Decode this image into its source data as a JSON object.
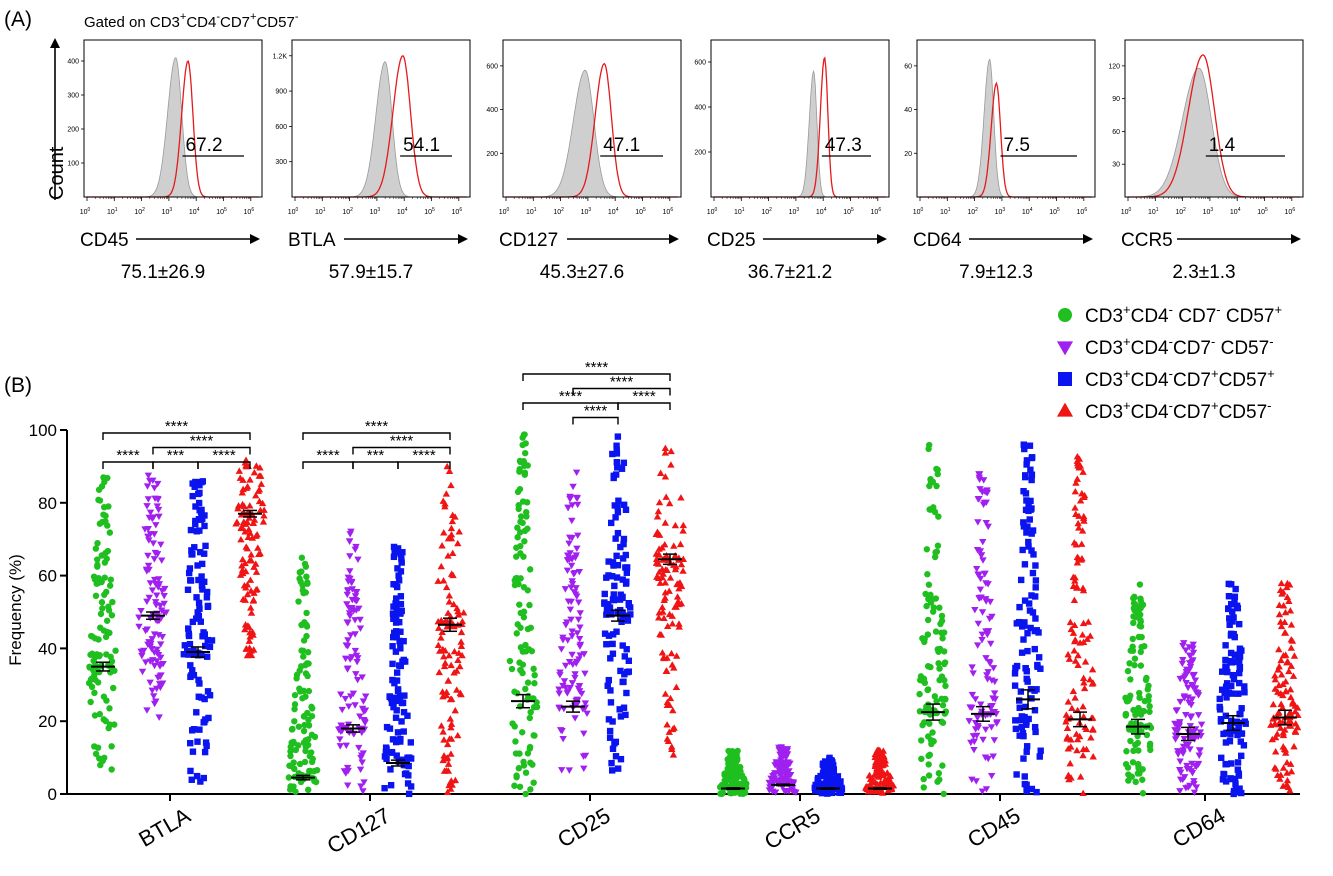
{
  "panel_a": {
    "label": "(A)",
    "gating": {
      "prefix": "Gated on CD3",
      "s1": "+",
      "m1": "CD4",
      "s2": "-",
      "m2": "CD7",
      "s3": "+",
      "m3": "CD57",
      "s4": "-"
    },
    "y_axis_label": "Count",
    "colors": {
      "control": "#cfcfcf",
      "control_edge": "#999999",
      "sample": "#e41a1c"
    },
    "x_ticks": [
      "10",
      "10",
      "10",
      "10",
      "10",
      "10",
      "10"
    ],
    "x_tick_exps": [
      "0",
      "1",
      "2",
      "3",
      "4",
      "5",
      "6"
    ],
    "histograms": [
      {
        "marker": "CD45",
        "gate_value": "67.2",
        "summary": "75.1±26.9",
        "y_ticks": [
          "100",
          "200",
          "300",
          "400"
        ],
        "y_max": 450,
        "ctrl_peak_log": 3.25,
        "ctrl_sd": 0.22,
        "ctrl_height": 410,
        "sample_peak_log": 3.7,
        "sample_sd": 0.18,
        "sample_height": 400,
        "gate_start_log": 3.5
      },
      {
        "marker": "BTLA",
        "gate_value": "54.1",
        "summary": "57.9±15.7",
        "y_ticks": [
          "300",
          "600",
          "900",
          "1.2K"
        ],
        "y_max": 1300,
        "ctrl_peak_log": 3.3,
        "ctrl_sd": 0.25,
        "ctrl_height": 1150,
        "sample_peak_log": 3.95,
        "sample_sd": 0.28,
        "sample_height": 1200,
        "gate_start_log": 3.85
      },
      {
        "marker": "CD127",
        "gate_value": "47.1",
        "summary": "45.3±27.6",
        "y_ticks": [
          "200",
          "400",
          "600"
        ],
        "y_max": 700,
        "ctrl_peak_log": 2.9,
        "ctrl_sd": 0.32,
        "ctrl_height": 580,
        "sample_peak_log": 3.6,
        "sample_sd": 0.26,
        "sample_height": 610,
        "gate_start_log": 3.45
      },
      {
        "marker": "CD25",
        "gate_value": "47.3",
        "summary": "36.7±21.2",
        "y_ticks": [
          "200",
          "400",
          "600"
        ],
        "y_max": 680,
        "ctrl_peak_log": 3.65,
        "ctrl_sd": 0.12,
        "ctrl_height": 560,
        "sample_peak_log": 4.05,
        "sample_sd": 0.12,
        "sample_height": 620,
        "gate_start_log": 3.95
      },
      {
        "marker": "CD64",
        "gate_value": "7.5",
        "summary": "7.9±12.3",
        "y_ticks": [
          "20",
          "40",
          "60"
        ],
        "y_max": 70,
        "ctrl_peak_log": 2.55,
        "ctrl_sd": 0.15,
        "ctrl_height": 63,
        "sample_peak_log": 2.8,
        "sample_sd": 0.15,
        "sample_height": 52,
        "gate_start_log": 2.95
      },
      {
        "marker": "CCR5",
        "gate_value": "1.4",
        "summary": "2.3±1.3",
        "y_ticks": [
          "30",
          "60",
          "90",
          "120"
        ],
        "y_max": 140,
        "ctrl_peak_log": 2.6,
        "ctrl_sd": 0.45,
        "ctrl_height": 118,
        "sample_peak_log": 2.75,
        "sample_sd": 0.42,
        "sample_height": 130,
        "gate_start_log": 2.85
      }
    ]
  },
  "chart_data": {
    "type": "scatter",
    "panel_label": "(B)",
    "ylabel": "Frequency (%)",
    "ylim": [
      0,
      100
    ],
    "y_ticks": [
      "0",
      "20",
      "40",
      "60",
      "80",
      "100"
    ],
    "categories": [
      "BTLA",
      "CD127",
      "CD25",
      "CCR5",
      "CD45",
      "CD64"
    ],
    "legend": {
      "placement": "top-right",
      "items": [
        {
          "segments": [
            [
              "CD3",
              ""
            ],
            [
              "+",
              "sup"
            ],
            [
              "CD4",
              ""
            ],
            [
              "-",
              "sup"
            ],
            [
              " CD7",
              ""
            ],
            [
              "-",
              "sup"
            ],
            [
              " CD57",
              ""
            ],
            [
              "+",
              "sup"
            ]
          ],
          "color": "#1fbf1f",
          "marker": "circle"
        },
        {
          "segments": [
            [
              "CD3",
              ""
            ],
            [
              "+",
              "sup"
            ],
            [
              "CD4",
              ""
            ],
            [
              "-",
              "sup"
            ],
            [
              "CD7",
              ""
            ],
            [
              "-",
              "sup"
            ],
            [
              " CD57",
              ""
            ],
            [
              "-",
              "sup"
            ]
          ],
          "color": "#a020f0",
          "marker": "triangle-down"
        },
        {
          "segments": [
            [
              "CD3",
              ""
            ],
            [
              "+",
              "sup"
            ],
            [
              "CD4",
              ""
            ],
            [
              "-",
              "sup"
            ],
            [
              "CD7",
              ""
            ],
            [
              "+",
              "sup"
            ],
            [
              "CD57",
              ""
            ],
            [
              "+",
              "sup"
            ]
          ],
          "color": "#0a14f0",
          "marker": "square"
        },
        {
          "segments": [
            [
              "CD3",
              ""
            ],
            [
              "+",
              "sup"
            ],
            [
              "CD4",
              ""
            ],
            [
              "-",
              "sup"
            ],
            [
              "CD7",
              ""
            ],
            [
              "+",
              "sup"
            ],
            [
              "CD57",
              ""
            ],
            [
              "-",
              "sup"
            ]
          ],
          "color": "#f01414",
          "marker": "triangle-up"
        }
      ]
    },
    "series_colors": [
      "#1fbf1f",
      "#a020f0",
      "#0a14f0",
      "#f01414"
    ],
    "series_markers": [
      "circle",
      "triangle-down",
      "square",
      "triangle-up"
    ],
    "means": {
      "BTLA": [
        35,
        49,
        39,
        77
      ],
      "CD127": [
        4.5,
        18,
        8.5,
        46.5
      ],
      "CD25": [
        25.5,
        24,
        49,
        64.5
      ],
      "CCR5": [
        1.5,
        2.5,
        1.5,
        1.5
      ],
      "CD45": [
        22.5,
        22,
        26,
        20.5
      ],
      "CD64": [
        18.5,
        16.5,
        19.5,
        21
      ]
    },
    "sem": {
      "BTLA": [
        1.2,
        1.0,
        1.4,
        0.9
      ],
      "CD127": [
        0.6,
        1.0,
        0.8,
        1.8
      ],
      "CD25": [
        1.8,
        1.5,
        1.5,
        1.4
      ],
      "CCR5": [
        0.2,
        0.2,
        0.2,
        0.2
      ],
      "CD45": [
        2.2,
        2.0,
        2.6,
        2.0
      ],
      "CD64": [
        2.0,
        1.8,
        2.0,
        2.0
      ]
    },
    "ranges": {
      "BTLA": [
        [
          1,
          87
        ],
        [
          21,
          88
        ],
        [
          3,
          86
        ],
        [
          38,
          93
        ]
      ],
      "CD127": [
        [
          0,
          66
        ],
        [
          0,
          73
        ],
        [
          0,
          68
        ],
        [
          0,
          90
        ]
      ],
      "CD25": [
        [
          0,
          100
        ],
        [
          1,
          93
        ],
        [
          6,
          99
        ],
        [
          10,
          97
        ]
      ],
      "CCR5": [
        [
          0,
          12
        ],
        [
          0,
          13
        ],
        [
          0,
          10
        ],
        [
          0,
          12
        ]
      ],
      "CD45": [
        [
          0,
          98
        ],
        [
          0,
          88
        ],
        [
          0,
          96
        ],
        [
          0,
          93
        ]
      ],
      "CD64": [
        [
          0,
          58
        ],
        [
          0,
          42
        ],
        [
          0,
          58
        ],
        [
          0,
          58
        ]
      ]
    },
    "significance": {
      "BTLA": [
        {
          "from": 0,
          "to": 3,
          "level": 2,
          "label": "****"
        },
        {
          "from": 1,
          "to": 3,
          "level": 1,
          "label": "****"
        },
        {
          "from": 0,
          "to": 1,
          "level": 0,
          "label": "****"
        },
        {
          "from": 1,
          "to": 2,
          "level": 0,
          "label": "***"
        },
        {
          "from": 2,
          "to": 3,
          "level": 0,
          "label": "****"
        }
      ],
      "CD127": [
        {
          "from": 0,
          "to": 3,
          "level": 2,
          "label": "****"
        },
        {
          "from": 1,
          "to": 3,
          "level": 1,
          "label": "****"
        },
        {
          "from": 0,
          "to": 1,
          "level": 0,
          "label": "****"
        },
        {
          "from": 1,
          "to": 2,
          "level": 0,
          "label": "***"
        },
        {
          "from": 2,
          "to": 3,
          "level": 0,
          "label": "****"
        }
      ],
      "CD25": [
        {
          "from": 0,
          "to": 3,
          "level": 4,
          "label": "****"
        },
        {
          "from": 1,
          "to": 3,
          "level": 3,
          "label": "****"
        },
        {
          "from": 0,
          "to": 2,
          "level": 2,
          "label": "****"
        },
        {
          "from": 2,
          "to": 3,
          "level": 2,
          "label": "****"
        },
        {
          "from": 1,
          "to": 2,
          "level": 1,
          "label": "****"
        }
      ]
    }
  }
}
